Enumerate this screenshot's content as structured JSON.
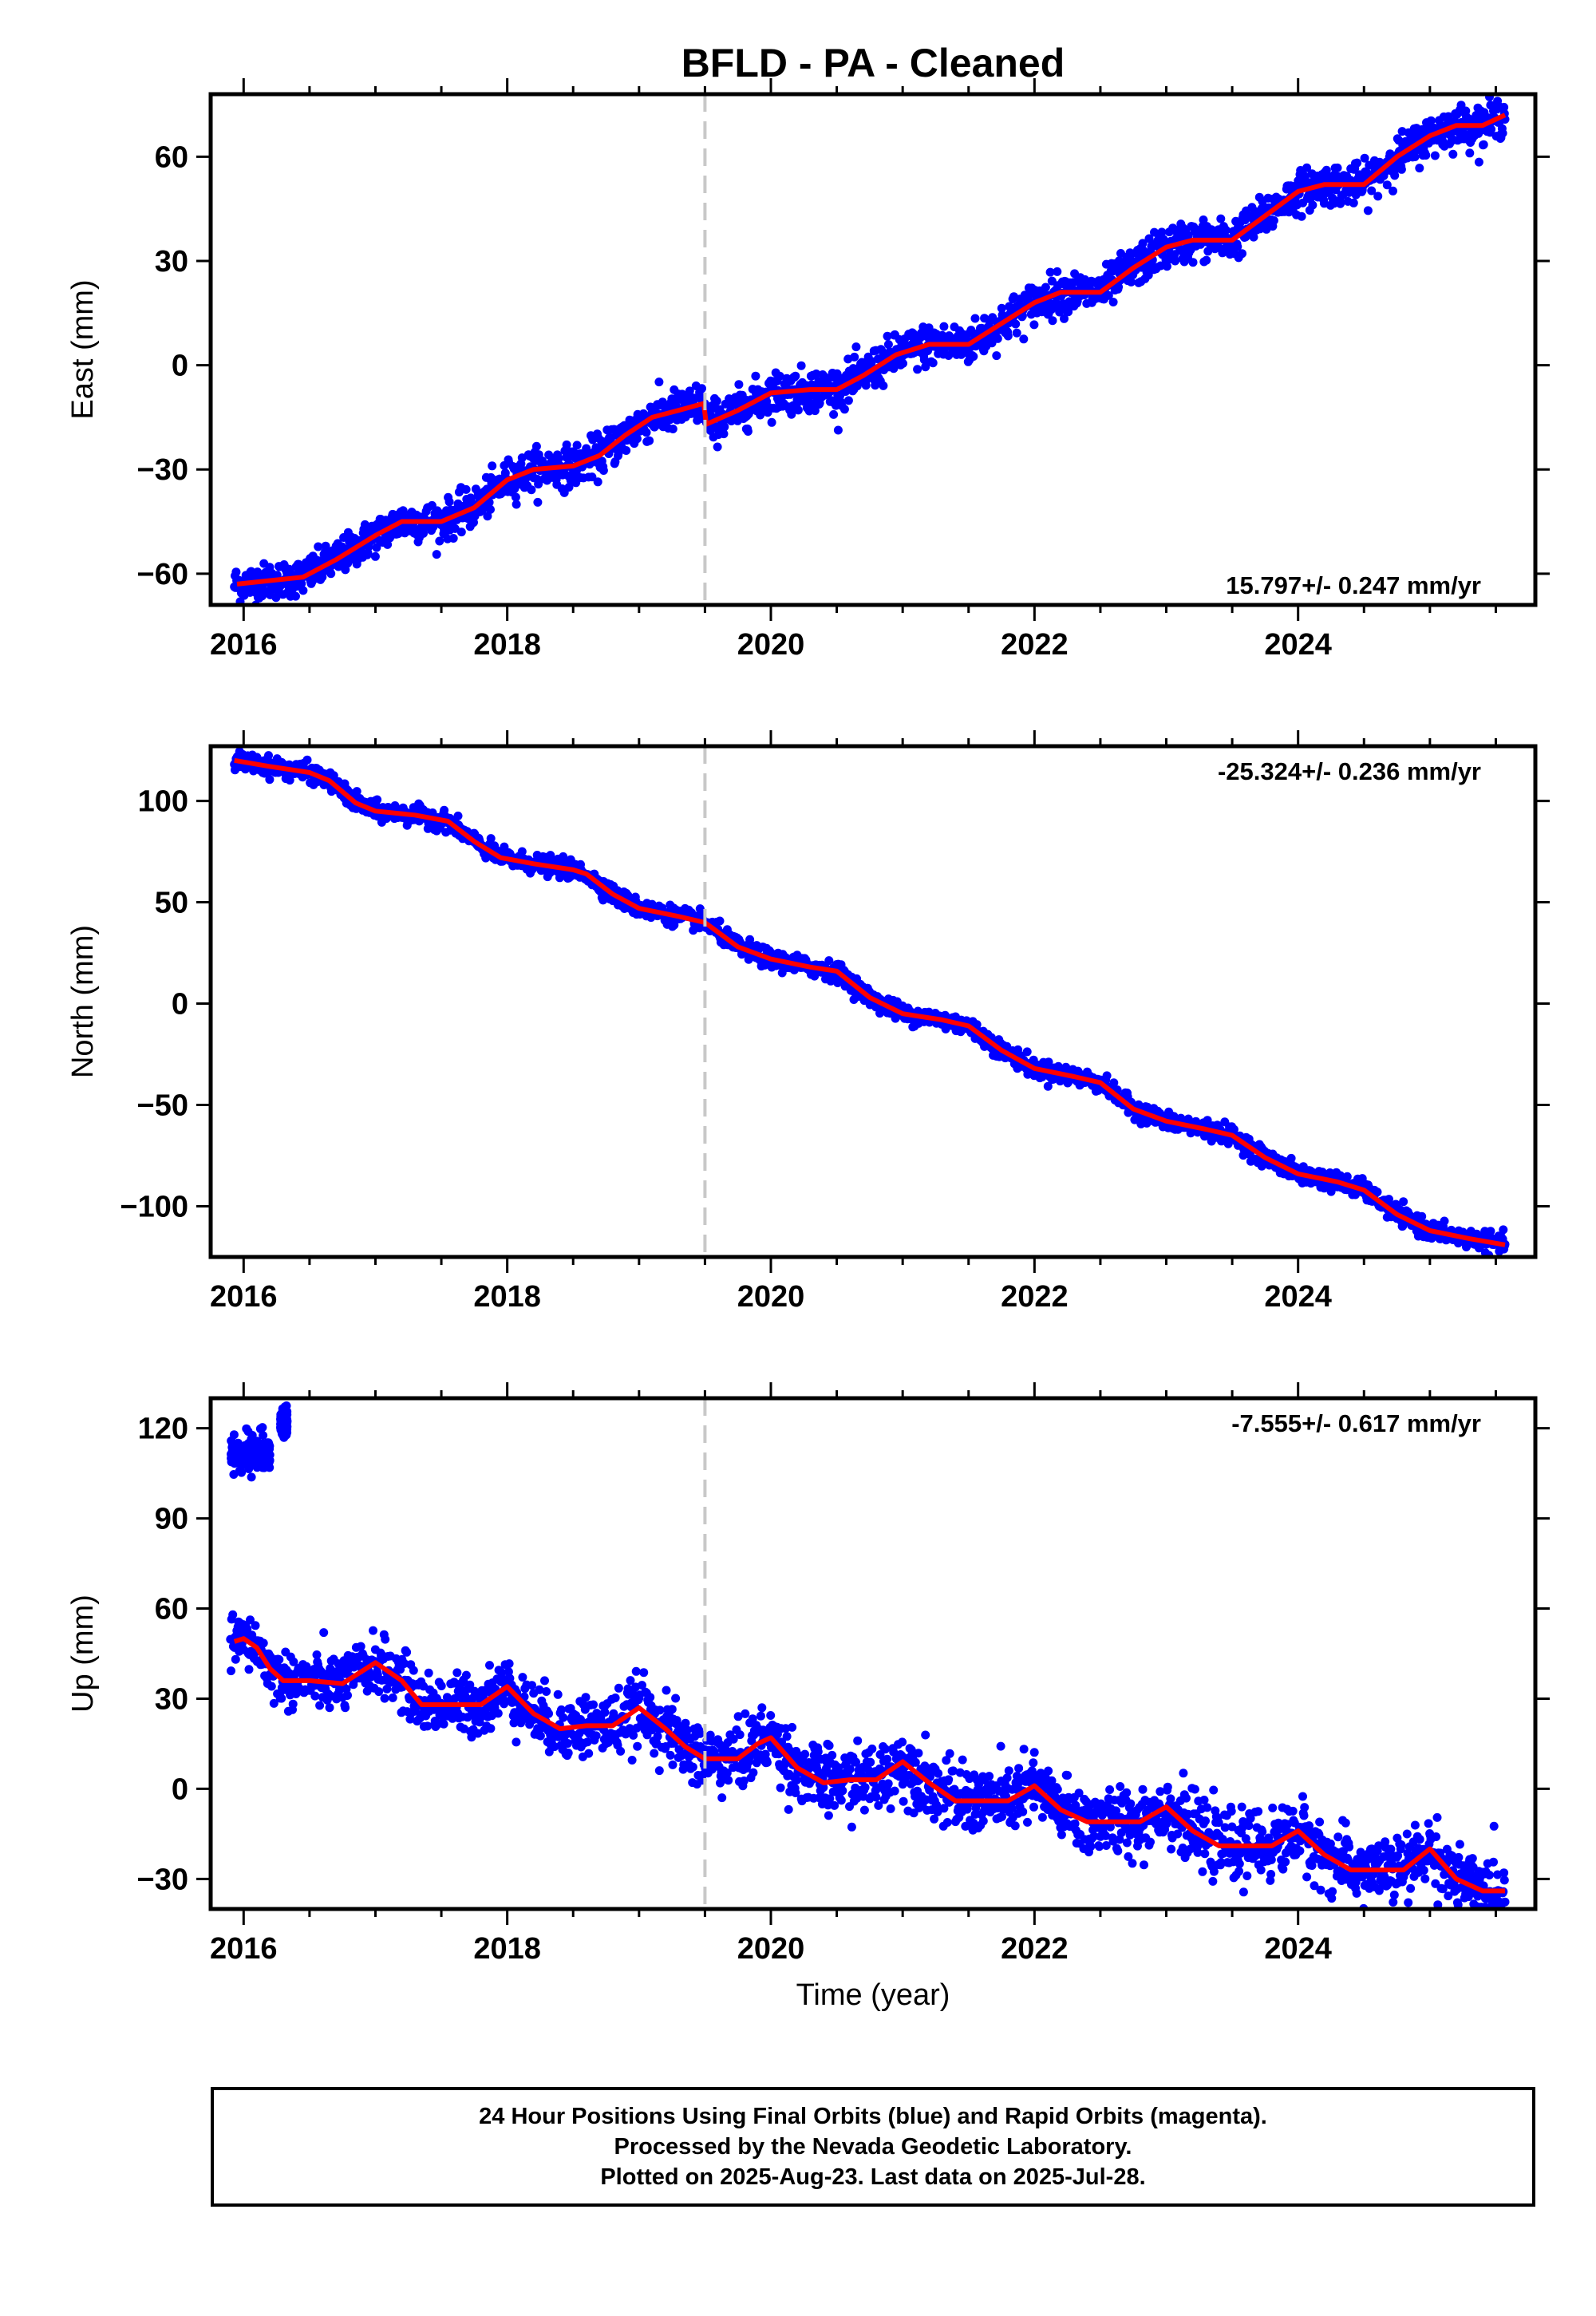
{
  "colors": {
    "final_orbits": "#0000ff",
    "model_fit": "#ff0000",
    "event_line": "#c8c8c8"
  },
  "chart_data": [
    {
      "type": "scatter",
      "title": "BFLD  - PA - Cleaned",
      "ylabel": "East (mm)",
      "xlabel": "",
      "xlim": [
        2015.75,
        2025.8
      ],
      "ylim": [
        -69,
        78
      ],
      "xticks": [
        2016,
        2018,
        2020,
        2022,
        2024
      ],
      "yticks": [
        -60,
        -30,
        0,
        30,
        60
      ],
      "rate_label": "15.797+/- 0.247 mm/yr",
      "rate_position": "bottom-right",
      "event_line_x": 2019.5,
      "data_start": 2015.93,
      "data_end": 2025.57,
      "trend": [
        [
          2015.95,
          -63
        ],
        [
          2016.2,
          -62
        ],
        [
          2016.45,
          -61
        ],
        [
          2016.7,
          -56
        ],
        [
          2017.0,
          -49
        ],
        [
          2017.2,
          -45
        ],
        [
          2017.5,
          -45
        ],
        [
          2017.75,
          -41
        ],
        [
          2018.0,
          -33
        ],
        [
          2018.2,
          -30
        ],
        [
          2018.5,
          -29
        ],
        [
          2018.7,
          -26
        ],
        [
          2018.9,
          -20
        ],
        [
          2019.1,
          -15
        ],
        [
          2019.3,
          -13
        ],
        [
          2019.49,
          -11
        ],
        [
          2019.51,
          -17
        ],
        [
          2019.75,
          -13
        ],
        [
          2020.0,
          -8
        ],
        [
          2020.3,
          -7
        ],
        [
          2020.5,
          -7
        ],
        [
          2020.7,
          -3
        ],
        [
          2020.95,
          3
        ],
        [
          2021.2,
          6
        ],
        [
          2021.5,
          6
        ],
        [
          2021.75,
          12
        ],
        [
          2022.0,
          18
        ],
        [
          2022.2,
          21
        ],
        [
          2022.5,
          21
        ],
        [
          2022.75,
          28
        ],
        [
          2023.0,
          34
        ],
        [
          2023.2,
          36
        ],
        [
          2023.5,
          36
        ],
        [
          2023.75,
          43
        ],
        [
          2024.0,
          50
        ],
        [
          2024.2,
          52
        ],
        [
          2024.5,
          52
        ],
        [
          2024.75,
          60
        ],
        [
          2025.0,
          66
        ],
        [
          2025.2,
          69
        ],
        [
          2025.4,
          69
        ],
        [
          2025.57,
          72
        ]
      ],
      "scatter_envelope": [
        [
          2016.0,
          2.5
        ],
        [
          2019.5,
          3.0
        ],
        [
          2025.57,
          2.8
        ]
      ]
    },
    {
      "type": "scatter",
      "title": "",
      "ylabel": "North (mm)",
      "xlabel": "",
      "xlim": [
        2015.75,
        2025.8
      ],
      "ylim": [
        -125,
        127
      ],
      "xticks": [
        2016,
        2018,
        2020,
        2022,
        2024
      ],
      "yticks": [
        -100,
        -50,
        0,
        50,
        100
      ],
      "rate_label": "-25.324+/- 0.236 mm/yr",
      "rate_position": "top-right",
      "event_line_x": 2019.5,
      "data_start": 2015.93,
      "data_end": 2025.57,
      "trend": [
        [
          2015.93,
          120
        ],
        [
          2016.2,
          117
        ],
        [
          2016.5,
          114
        ],
        [
          2016.65,
          110
        ],
        [
          2016.85,
          99
        ],
        [
          2017.0,
          95
        ],
        [
          2017.3,
          93
        ],
        [
          2017.55,
          90
        ],
        [
          2017.75,
          80
        ],
        [
          2017.95,
          72
        ],
        [
          2018.2,
          69
        ],
        [
          2018.5,
          66
        ],
        [
          2018.6,
          64
        ],
        [
          2018.8,
          54
        ],
        [
          2019.0,
          47
        ],
        [
          2019.3,
          43
        ],
        [
          2019.5,
          40
        ],
        [
          2019.75,
          28
        ],
        [
          2020.0,
          22
        ],
        [
          2020.3,
          18
        ],
        [
          2020.5,
          16
        ],
        [
          2020.75,
          3
        ],
        [
          2021.0,
          -5
        ],
        [
          2021.3,
          -8
        ],
        [
          2021.5,
          -11
        ],
        [
          2021.75,
          -23
        ],
        [
          2022.0,
          -32
        ],
        [
          2022.3,
          -36
        ],
        [
          2022.5,
          -39
        ],
        [
          2022.75,
          -52
        ],
        [
          2023.0,
          -58
        ],
        [
          2023.3,
          -62
        ],
        [
          2023.5,
          -65
        ],
        [
          2023.75,
          -76
        ],
        [
          2024.0,
          -84
        ],
        [
          2024.3,
          -88
        ],
        [
          2024.5,
          -92
        ],
        [
          2024.75,
          -104
        ],
        [
          2025.0,
          -112
        ],
        [
          2025.3,
          -116
        ],
        [
          2025.57,
          -119
        ]
      ],
      "scatter_envelope": [
        [
          2016.0,
          2.2
        ],
        [
          2025.57,
          2.2
        ]
      ]
    },
    {
      "type": "scatter",
      "title": "",
      "ylabel": "Up (mm)",
      "xlabel": "Time (year)",
      "xlim": [
        2015.75,
        2025.8
      ],
      "ylim": [
        -40,
        130
      ],
      "xticks": [
        2016,
        2018,
        2020,
        2022,
        2024
      ],
      "yticks": [
        -30,
        0,
        30,
        60,
        90,
        120
      ],
      "rate_label": "-7.555+/- 0.617 mm/yr",
      "rate_position": "top-right",
      "event_line_x": 2019.5,
      "data_start": 2015.9,
      "data_end": 2025.57,
      "outlier_clusters": [
        {
          "x_range": [
            2015.9,
            2016.2
          ],
          "y_center": 112,
          "y_spread": 6
        },
        {
          "x_range": [
            2016.28,
            2016.33
          ],
          "y_center": 122,
          "y_spread": 4
        }
      ],
      "trend": [
        [
          2015.93,
          49
        ],
        [
          2016.0,
          50
        ],
        [
          2016.1,
          47
        ],
        [
          2016.2,
          40
        ],
        [
          2016.3,
          36
        ],
        [
          2016.5,
          36
        ],
        [
          2016.75,
          35
        ],
        [
          2017.0,
          42
        ],
        [
          2017.2,
          36
        ],
        [
          2017.35,
          28
        ],
        [
          2017.6,
          28
        ],
        [
          2017.8,
          28
        ],
        [
          2018.0,
          34
        ],
        [
          2018.2,
          25
        ],
        [
          2018.4,
          20
        ],
        [
          2018.6,
          21
        ],
        [
          2018.8,
          21
        ],
        [
          2019.0,
          27
        ],
        [
          2019.2,
          20
        ],
        [
          2019.35,
          14
        ],
        [
          2019.5,
          10
        ],
        [
          2019.75,
          10
        ],
        [
          2019.9,
          15
        ],
        [
          2020.0,
          17
        ],
        [
          2020.2,
          7
        ],
        [
          2020.4,
          2
        ],
        [
          2020.6,
          3
        ],
        [
          2020.8,
          3
        ],
        [
          2021.0,
          9
        ],
        [
          2021.2,
          2
        ],
        [
          2021.4,
          -4
        ],
        [
          2021.6,
          -4
        ],
        [
          2021.8,
          -4
        ],
        [
          2022.0,
          1
        ],
        [
          2022.2,
          -7
        ],
        [
          2022.4,
          -11
        ],
        [
          2022.6,
          -11
        ],
        [
          2022.8,
          -11
        ],
        [
          2023.0,
          -6
        ],
        [
          2023.2,
          -14
        ],
        [
          2023.4,
          -19
        ],
        [
          2023.6,
          -19
        ],
        [
          2023.8,
          -19
        ],
        [
          2024.0,
          -14
        ],
        [
          2024.2,
          -22
        ],
        [
          2024.4,
          -27
        ],
        [
          2024.6,
          -27
        ],
        [
          2024.8,
          -27
        ],
        [
          2025.0,
          -20
        ],
        [
          2025.2,
          -30
        ],
        [
          2025.4,
          -34
        ],
        [
          2025.57,
          -34
        ]
      ],
      "scatter_envelope": [
        [
          2016.3,
          4.5
        ],
        [
          2018.0,
          5.0
        ],
        [
          2020.0,
          5.5
        ],
        [
          2022.0,
          5.5
        ],
        [
          2024.0,
          5.5
        ],
        [
          2025.57,
          5.0
        ]
      ]
    }
  ],
  "footer": {
    "line1": "24 Hour Positions Using Final Orbits (blue) and Rapid Orbits (magenta).",
    "line2": "Processed by the Nevada Geodetic Laboratory.",
    "line3": "Plotted on 2025-Aug-23. Last data on 2025-Jul-28."
  }
}
